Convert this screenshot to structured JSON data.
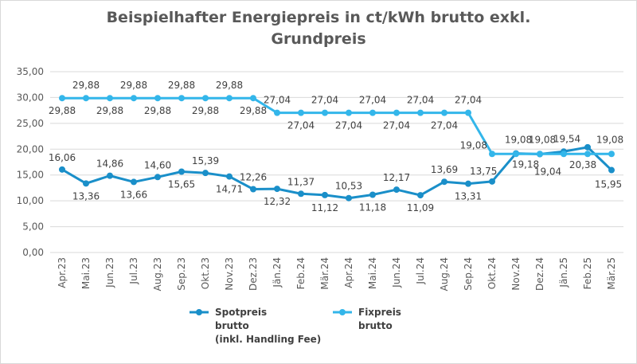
{
  "chart_data": {
    "type": "line",
    "title": "Beispielhafter Energiepreis in ct/kWh brutto exkl. Grundpreis",
    "title_lines": [
      "Beispielhafter Energiepreis in ct/kWh brutto exkl.",
      "Grundpreis"
    ],
    "categories": [
      "Apr.23",
      "Mai.23",
      "Jun.23",
      "Jul.23",
      "Aug.23",
      "Sep.23",
      "Okt.23",
      "Nov.23",
      "Dez.23",
      "Jän.24",
      "Feb.24",
      "Mär.24",
      "Apr.24",
      "Mai.24",
      "Jun.24",
      "Jul.24",
      "Aug.24",
      "Sep.24",
      "Okt.24",
      "Nov.24",
      "Dez.24",
      "Jän.25",
      "Feb.25",
      "Mär.25"
    ],
    "ylim": [
      0,
      35
    ],
    "yticks": [
      "0,00",
      "5,00",
      "10,00",
      "15,00",
      "20,00",
      "25,00",
      "30,00",
      "35,00"
    ],
    "grid": true,
    "legend_position": "bottom",
    "series": [
      {
        "name": "Spotpreis brutto (inkl. Handling Fee)",
        "legend_lines": [
          "Spotpreis",
          "brutto",
          "(inkl. Handling Fee)"
        ],
        "color": "#1a8fc9",
        "values": [
          16.06,
          13.36,
          14.86,
          13.66,
          14.6,
          15.65,
          15.39,
          14.71,
          12.26,
          12.32,
          11.37,
          11.12,
          10.53,
          11.18,
          12.17,
          11.09,
          13.69,
          13.31,
          13.75,
          19.18,
          19.04,
          19.54,
          20.38,
          15.95
        ],
        "labels": [
          "16,06",
          "13,36",
          "14,86",
          "13,66",
          "14,60",
          "15,65",
          "15,39",
          "14,71",
          "12,26",
          "12,32",
          "11,37",
          "11,12",
          "10,53",
          "11,18",
          "12,17",
          "11,09",
          "13,69",
          "13,31",
          "13,75",
          "19,18",
          "19,04",
          "19,54",
          "20,38",
          "15,95"
        ]
      },
      {
        "name": "Fixpreis brutto",
        "legend_lines": [
          "Fixpreis",
          "brutto"
        ],
        "color": "#33b6ea",
        "values": [
          29.88,
          29.88,
          29.88,
          29.88,
          29.88,
          29.88,
          29.88,
          29.88,
          29.88,
          27.04,
          27.04,
          27.04,
          27.04,
          27.04,
          27.04,
          27.04,
          27.04,
          27.04,
          19.08,
          19.08,
          19.08,
          19.08,
          19.08,
          19.08
        ],
        "labels": [
          "29,88",
          "29,88",
          "29,88",
          "29,88",
          "29,88",
          "29,88",
          "29,88",
          "29,88",
          "29,88",
          "27,04",
          "27,04",
          "27,04",
          "27,04",
          "27,04",
          "27,04",
          "27,04",
          "27,04",
          "27,04",
          "19,08",
          "19,08",
          "19,08",
          "19,08",
          "19,08",
          "19,08"
        ]
      }
    ]
  }
}
